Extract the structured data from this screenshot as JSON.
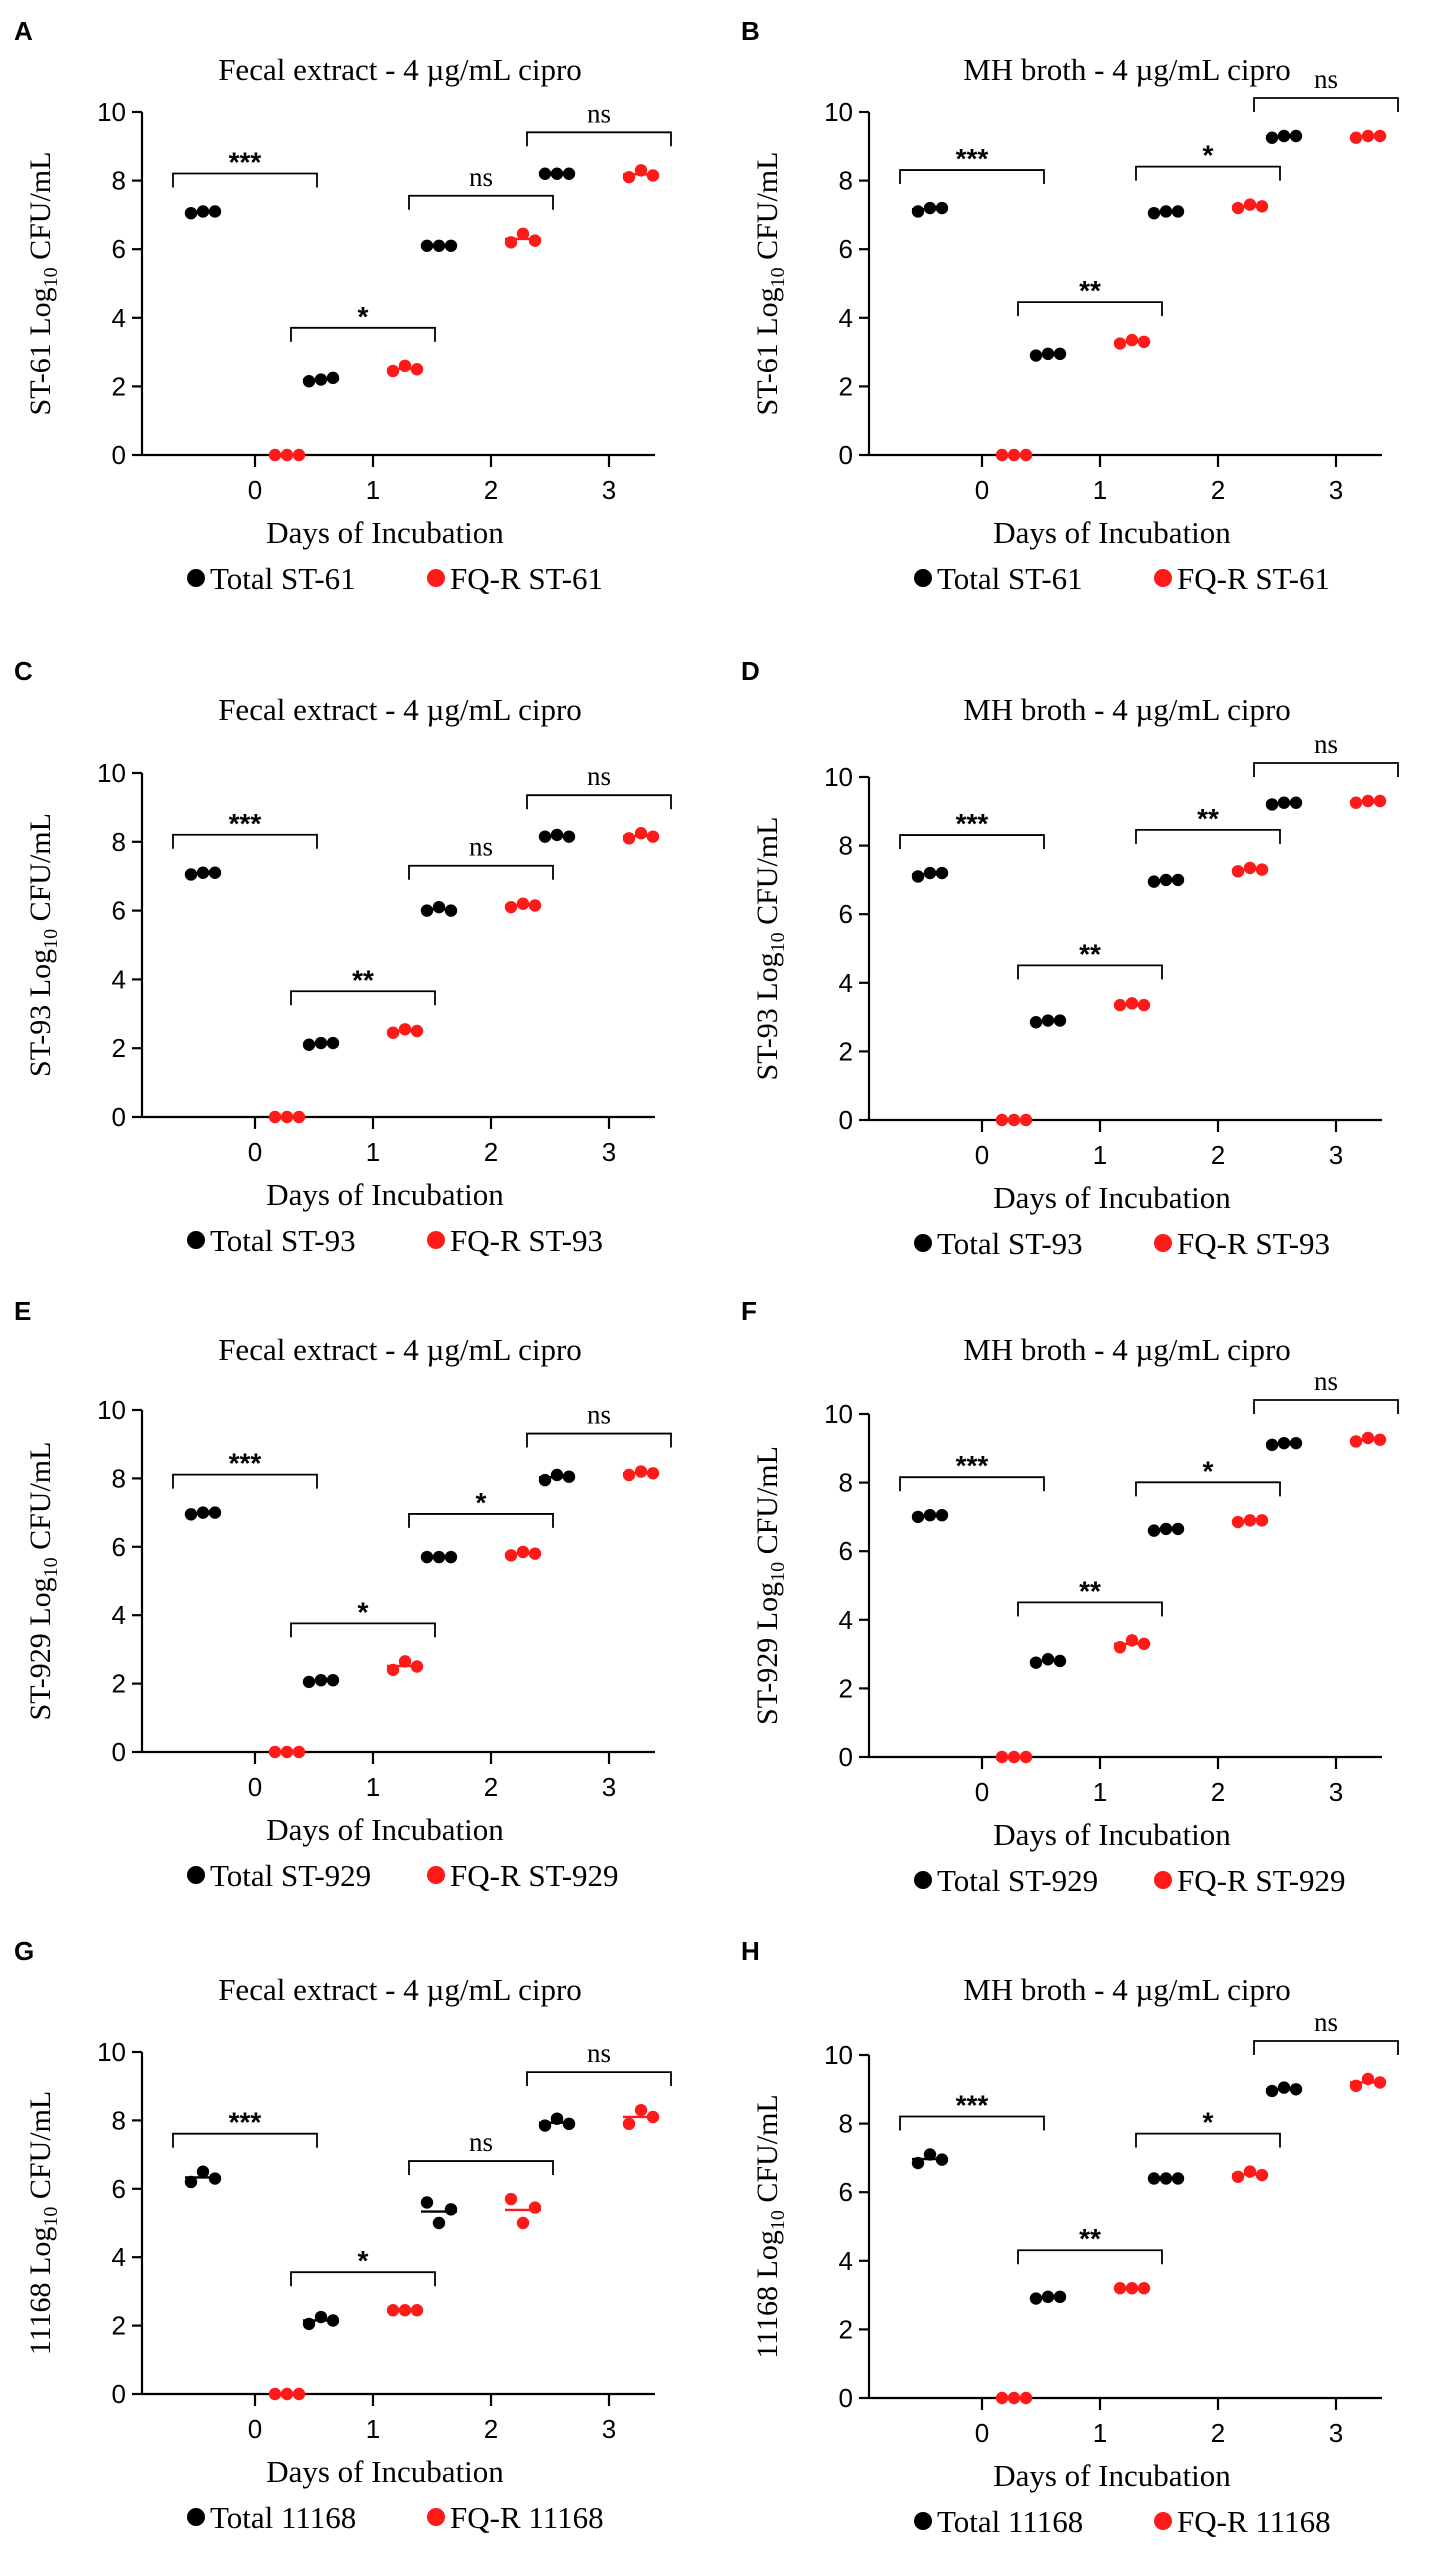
{
  "colors": {
    "total": "#000000",
    "fqr": "#ff1a1a"
  },
  "chart_data": [
    {
      "letter": "A",
      "type": "scatter",
      "title": "Fecal extract - 4 µg/mL cipro",
      "ylabel_prefix": "ST-61 Log",
      "ylabel_sub": "10",
      "ylabel_suffix": " CFU/mL",
      "xlabel": "Days of Incubation",
      "ylim": [
        0,
        10
      ],
      "yticks": [
        "0",
        "2",
        "4",
        "6",
        "8",
        "10"
      ],
      "categories": [
        "0",
        "1",
        "2",
        "3"
      ],
      "legend": [
        "Total ST-61",
        "FQ-R ST-61"
      ],
      "series": [
        {
          "name": "Total ST-61",
          "points": [
            [
              7.05,
              7.1,
              7.1
            ],
            [
              2.15,
              2.2,
              2.25
            ],
            [
              6.1,
              6.1,
              6.1
            ],
            [
              8.2,
              8.2,
              8.2
            ]
          ]
        },
        {
          "name": "FQ-R ST-61",
          "points": [
            [
              0,
              0,
              0
            ],
            [
              2.45,
              2.6,
              2.5
            ],
            [
              6.2,
              6.45,
              6.25
            ],
            [
              8.1,
              8.3,
              8.15
            ]
          ]
        }
      ],
      "significance": [
        "***",
        "*",
        "ns",
        "ns"
      ]
    },
    {
      "letter": "B",
      "type": "scatter",
      "title": "MH broth - 4 µg/mL cipro",
      "ylabel_prefix": "ST-61 Log",
      "ylabel_sub": "10",
      "ylabel_suffix": " CFU/mL",
      "xlabel": "Days of Incubation",
      "ylim": [
        0,
        10
      ],
      "yticks": [
        "0",
        "2",
        "4",
        "6",
        "8",
        "10"
      ],
      "categories": [
        "0",
        "1",
        "2",
        "3"
      ],
      "legend": [
        "Total ST-61",
        "FQ-R ST-61"
      ],
      "series": [
        {
          "name": "Total ST-61",
          "points": [
            [
              7.1,
              7.2,
              7.2
            ],
            [
              2.9,
              2.95,
              2.95
            ],
            [
              7.05,
              7.1,
              7.1
            ],
            [
              9.25,
              9.3,
              9.3
            ]
          ]
        },
        {
          "name": "FQ-R ST-61",
          "points": [
            [
              0,
              0,
              0
            ],
            [
              3.25,
              3.35,
              3.3
            ],
            [
              7.2,
              7.3,
              7.25
            ],
            [
              9.25,
              9.3,
              9.3
            ]
          ]
        }
      ],
      "significance": [
        "***",
        "**",
        "*",
        "ns"
      ]
    },
    {
      "letter": "C",
      "type": "scatter",
      "title": "Fecal extract - 4 µg/mL cipro",
      "ylabel_prefix": "ST-93 Log",
      "ylabel_sub": "10",
      "ylabel_suffix": " CFU/mL",
      "xlabel": "Days of Incubation",
      "ylim": [
        0,
        10
      ],
      "yticks": [
        "0",
        "2",
        "4",
        "6",
        "8",
        "10"
      ],
      "categories": [
        "0",
        "1",
        "2",
        "3"
      ],
      "legend": [
        "Total ST-93",
        "FQ-R ST-93"
      ],
      "series": [
        {
          "name": "Total ST-93",
          "points": [
            [
              7.05,
              7.1,
              7.1
            ],
            [
              2.1,
              2.15,
              2.15
            ],
            [
              6.0,
              6.1,
              6.0
            ],
            [
              8.15,
              8.2,
              8.15
            ]
          ]
        },
        {
          "name": "FQ-R ST-93",
          "points": [
            [
              0,
              0,
              0
            ],
            [
              2.45,
              2.55,
              2.5
            ],
            [
              6.1,
              6.2,
              6.15
            ],
            [
              8.1,
              8.25,
              8.15
            ]
          ]
        }
      ],
      "significance": [
        "***",
        "**",
        "ns",
        "ns"
      ]
    },
    {
      "letter": "D",
      "type": "scatter",
      "title": "MH broth - 4 µg/mL cipro",
      "ylabel_prefix": "ST-93 Log",
      "ylabel_sub": "10",
      "ylabel_suffix": " CFU/mL",
      "xlabel": "Days of Incubation",
      "ylim": [
        0,
        10
      ],
      "yticks": [
        "0",
        "2",
        "4",
        "6",
        "8",
        "10"
      ],
      "categories": [
        "0",
        "1",
        "2",
        "3"
      ],
      "legend": [
        "Total ST-93",
        "FQ-R ST-93"
      ],
      "series": [
        {
          "name": "Total ST-93",
          "points": [
            [
              7.1,
              7.2,
              7.2
            ],
            [
              2.85,
              2.9,
              2.9
            ],
            [
              6.95,
              7.0,
              7.0
            ],
            [
              9.2,
              9.25,
              9.25
            ]
          ]
        },
        {
          "name": "FQ-R ST-93",
          "points": [
            [
              0,
              0,
              0
            ],
            [
              3.35,
              3.4,
              3.35
            ],
            [
              7.25,
              7.35,
              7.3
            ],
            [
              9.25,
              9.3,
              9.3
            ]
          ]
        }
      ],
      "significance": [
        "***",
        "**",
        "**",
        "ns"
      ]
    },
    {
      "letter": "E",
      "type": "scatter",
      "title": "Fecal extract - 4 µg/mL cipro",
      "ylabel_prefix": "ST-929 Log",
      "ylabel_sub": "10",
      "ylabel_suffix": " CFU/mL",
      "xlabel": "Days of Incubation",
      "ylim": [
        0,
        10
      ],
      "yticks": [
        "0",
        "2",
        "4",
        "6",
        "8",
        "10"
      ],
      "categories": [
        "0",
        "1",
        "2",
        "3"
      ],
      "legend": [
        "Total ST-929",
        "FQ-R ST-929"
      ],
      "series": [
        {
          "name": "Total ST-929",
          "points": [
            [
              6.95,
              7.0,
              7.0
            ],
            [
              2.05,
              2.1,
              2.1
            ],
            [
              5.7,
              5.7,
              5.7
            ],
            [
              7.95,
              8.1,
              8.05
            ]
          ]
        },
        {
          "name": "FQ-R ST-929",
          "points": [
            [
              0,
              0,
              0
            ],
            [
              2.4,
              2.65,
              2.5
            ],
            [
              5.75,
              5.85,
              5.8
            ],
            [
              8.1,
              8.2,
              8.15
            ]
          ]
        }
      ],
      "significance": [
        "***",
        "*",
        "*",
        "ns"
      ]
    },
    {
      "letter": "F",
      "type": "scatter",
      "title": "MH broth - 4 µg/mL cipro",
      "ylabel_prefix": "ST-929 Log",
      "ylabel_sub": "10",
      "ylabel_suffix": " CFU/mL",
      "xlabel": "Days of Incubation",
      "ylim": [
        0,
        10
      ],
      "yticks": [
        "0",
        "2",
        "4",
        "6",
        "8",
        "10"
      ],
      "categories": [
        "0",
        "1",
        "2",
        "3"
      ],
      "legend": [
        "Total ST-929",
        "FQ-R ST-929"
      ],
      "series": [
        {
          "name": "Total ST-929",
          "points": [
            [
              7.0,
              7.05,
              7.05
            ],
            [
              2.75,
              2.85,
              2.8
            ],
            [
              6.6,
              6.65,
              6.65
            ],
            [
              9.1,
              9.15,
              9.15
            ]
          ]
        },
        {
          "name": "FQ-R ST-929",
          "points": [
            [
              0,
              0,
              0
            ],
            [
              3.2,
              3.4,
              3.3
            ],
            [
              6.85,
              6.9,
              6.9
            ],
            [
              9.2,
              9.3,
              9.25
            ]
          ]
        }
      ],
      "significance": [
        "***",
        "**",
        "*",
        "ns"
      ]
    },
    {
      "letter": "G",
      "type": "scatter",
      "title": "Fecal extract - 4 µg/mL cipro",
      "ylabel_prefix": "11168 Log",
      "ylabel_sub": "10",
      "ylabel_suffix": " CFU/mL",
      "xlabel": "Days of Incubation",
      "ylim": [
        0,
        10
      ],
      "yticks": [
        "0",
        "2",
        "4",
        "6",
        "8",
        "10"
      ],
      "categories": [
        "0",
        "1",
        "2",
        "3"
      ],
      "legend": [
        "Total 11168",
        "FQ-R 11168"
      ],
      "series": [
        {
          "name": "Total 11168",
          "points": [
            [
              6.2,
              6.5,
              6.3
            ],
            [
              2.05,
              2.25,
              2.15
            ],
            [
              5.6,
              5.0,
              5.4
            ],
            [
              7.85,
              8.05,
              7.9
            ]
          ]
        },
        {
          "name": "FQ-R 11168",
          "points": [
            [
              0,
              0,
              0
            ],
            [
              2.45,
              2.45,
              2.45
            ],
            [
              5.7,
              5.0,
              5.45
            ],
            [
              7.9,
              8.3,
              8.1
            ]
          ]
        }
      ],
      "significance": [
        "***",
        "*",
        "ns",
        "ns"
      ]
    },
    {
      "letter": "H",
      "type": "scatter",
      "title": "MH broth - 4 µg/mL cipro",
      "ylabel_prefix": "11168 Log",
      "ylabel_sub": "10",
      "ylabel_suffix": " CFU/mL",
      "xlabel": "Days of Incubation",
      "ylim": [
        0,
        10
      ],
      "yticks": [
        "0",
        "2",
        "4",
        "6",
        "8",
        "10"
      ],
      "categories": [
        "0",
        "1",
        "2",
        "3"
      ],
      "legend": [
        "Total 11168",
        "FQ-R 11168"
      ],
      "series": [
        {
          "name": "Total 11168",
          "points": [
            [
              6.85,
              7.1,
              6.95
            ],
            [
              2.9,
              2.95,
              2.95
            ],
            [
              6.4,
              6.4,
              6.4
            ],
            [
              8.95,
              9.05,
              9.0
            ]
          ]
        },
        {
          "name": "FQ-R 11168",
          "points": [
            [
              0,
              0,
              0
            ],
            [
              3.2,
              3.2,
              3.2
            ],
            [
              6.45,
              6.6,
              6.5
            ],
            [
              9.1,
              9.3,
              9.2
            ]
          ]
        }
      ],
      "significance": [
        "***",
        "**",
        "*",
        "ns"
      ]
    }
  ]
}
